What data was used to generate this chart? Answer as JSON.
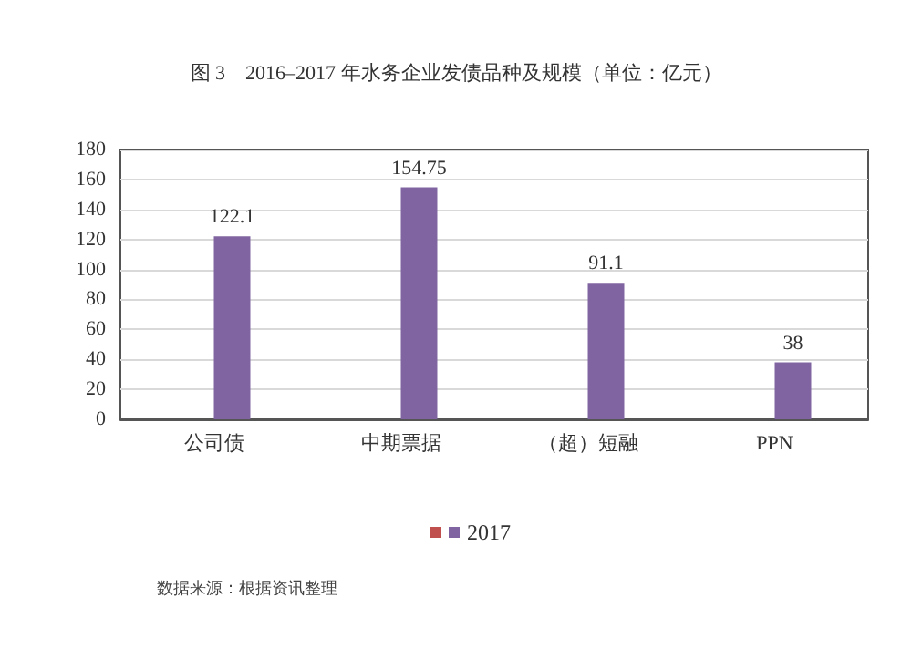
{
  "chart_data": {
    "type": "bar",
    "title": "图 3　2016–2017 年水务企业发债品种及规模（单位：亿元）",
    "categories": [
      "公司债",
      "中期票据",
      "（超）短融",
      "PPN"
    ],
    "series": [
      {
        "color": "#c0504d",
        "values": [
          null,
          null,
          null,
          null
        ]
      },
      {
        "name": "2017",
        "color": "#8064a2",
        "values": [
          122.1,
          154.75,
          91.1,
          38
        ]
      }
    ],
    "ylim": [
      0,
      180
    ],
    "yticks": [
      0,
      20,
      40,
      60,
      80,
      100,
      120,
      140,
      160,
      180
    ],
    "grid": "y",
    "legend": "bottom",
    "data_labels": true,
    "annotations": [
      "数据来源：根据资讯整理"
    ]
  }
}
